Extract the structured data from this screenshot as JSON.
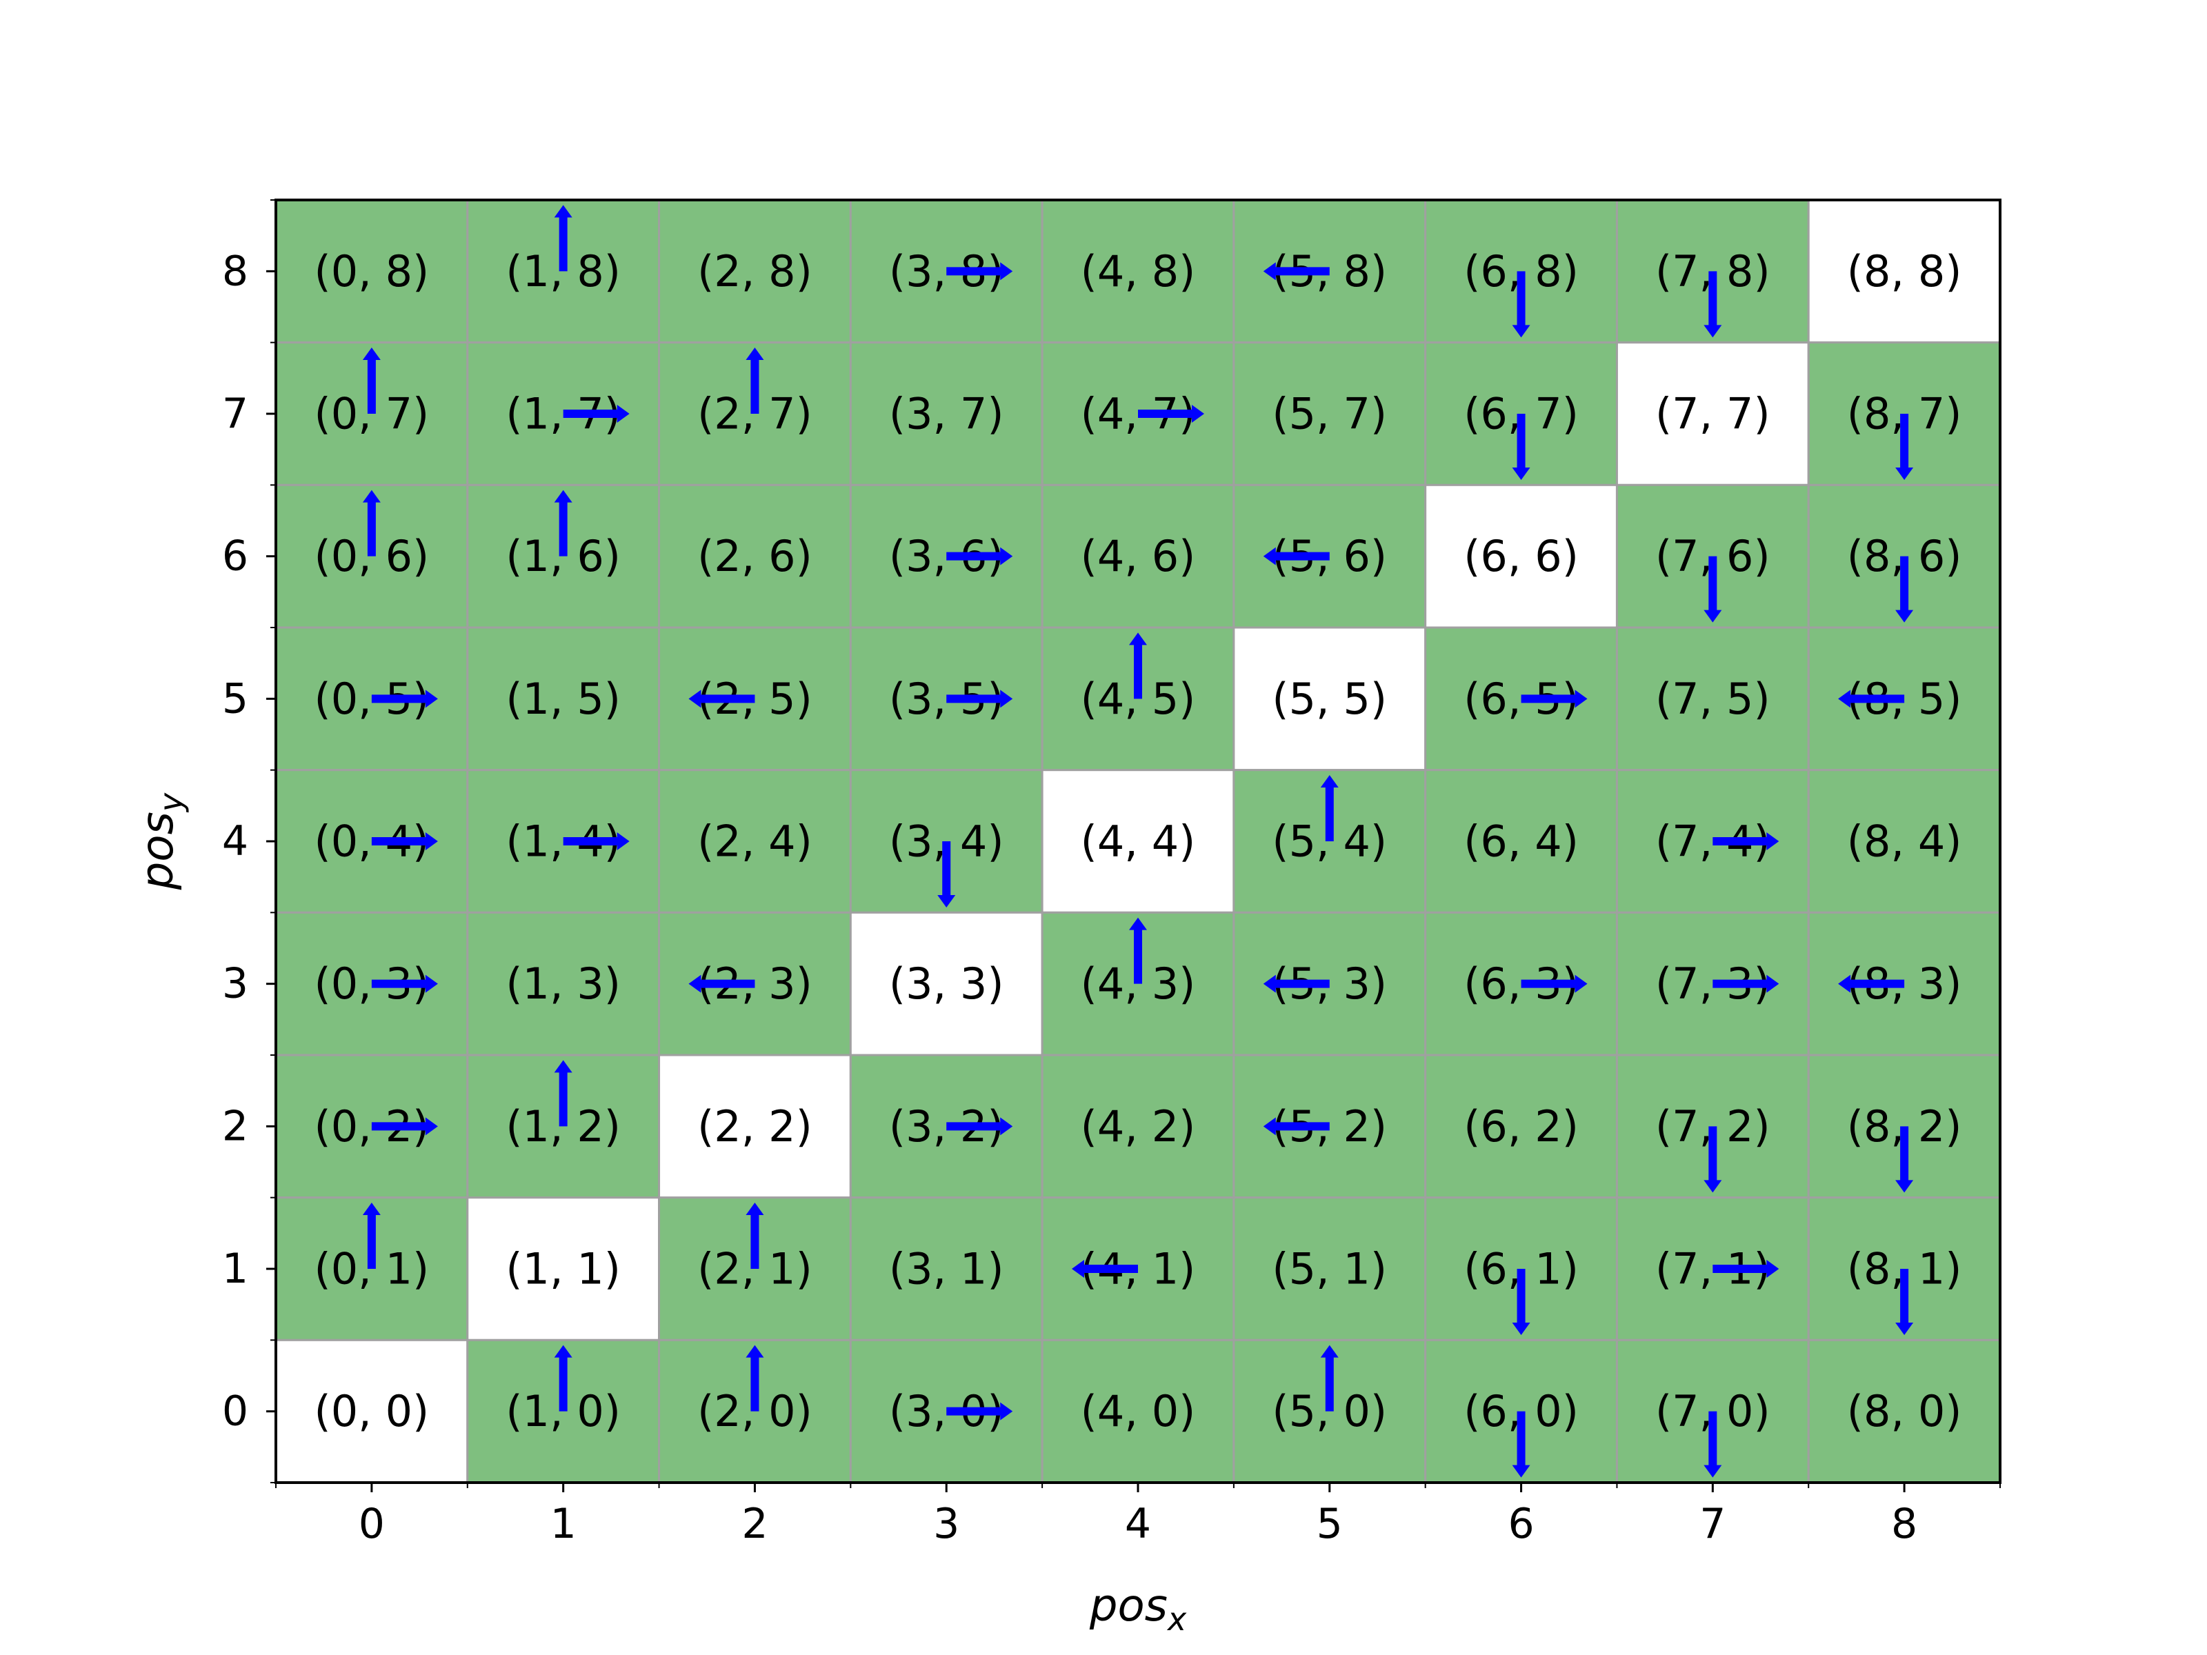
{
  "chart_data": {
    "type": "heatmap",
    "title": "",
    "xlabel": "pos",
    "xlabel_sub": "x",
    "ylabel": "pos",
    "ylabel_sub": "y",
    "xlim": [
      -0.5,
      8.5
    ],
    "ylim": [
      -0.5,
      8.5
    ],
    "x_ticks": [
      "0",
      "1",
      "2",
      "3",
      "4",
      "5",
      "6",
      "7",
      "8"
    ],
    "y_ticks": [
      "0",
      "1",
      "2",
      "3",
      "4",
      "5",
      "6",
      "7",
      "8"
    ],
    "grid": false,
    "colors": {
      "cell_fill": "#7fbf7f",
      "highlight_fill": "#ffffff",
      "cell_border": "#a0a0a0",
      "arrow": "#0000ff",
      "text": "#000000"
    },
    "highlighted_cells": [
      [
        0,
        0
      ],
      [
        1,
        1
      ],
      [
        2,
        2
      ],
      [
        3,
        3
      ],
      [
        4,
        4
      ],
      [
        5,
        5
      ],
      [
        6,
        6
      ],
      [
        7,
        7
      ],
      [
        8,
        8
      ]
    ],
    "cells": [
      {
        "x": 0,
        "y": 8,
        "label": "(0, 8)",
        "action": ""
      },
      {
        "x": 1,
        "y": 8,
        "label": "(1, 8)",
        "action": "up"
      },
      {
        "x": 2,
        "y": 8,
        "label": "(2, 8)",
        "action": ""
      },
      {
        "x": 3,
        "y": 8,
        "label": "(3, 8)",
        "action": "right"
      },
      {
        "x": 4,
        "y": 8,
        "label": "(4, 8)",
        "action": ""
      },
      {
        "x": 5,
        "y": 8,
        "label": "(5, 8)",
        "action": "left"
      },
      {
        "x": 6,
        "y": 8,
        "label": "(6, 8)",
        "action": "down"
      },
      {
        "x": 7,
        "y": 8,
        "label": "(7, 8)",
        "action": "down"
      },
      {
        "x": 8,
        "y": 8,
        "label": "(8, 8)",
        "action": ""
      },
      {
        "x": 0,
        "y": 7,
        "label": "(0, 7)",
        "action": "up"
      },
      {
        "x": 1,
        "y": 7,
        "label": "(1, 7)",
        "action": "right"
      },
      {
        "x": 2,
        "y": 7,
        "label": "(2, 7)",
        "action": "up"
      },
      {
        "x": 3,
        "y": 7,
        "label": "(3, 7)",
        "action": ""
      },
      {
        "x": 4,
        "y": 7,
        "label": "(4, 7)",
        "action": "right"
      },
      {
        "x": 5,
        "y": 7,
        "label": "(5, 7)",
        "action": ""
      },
      {
        "x": 6,
        "y": 7,
        "label": "(6, 7)",
        "action": "down"
      },
      {
        "x": 7,
        "y": 7,
        "label": "(7, 7)",
        "action": ""
      },
      {
        "x": 8,
        "y": 7,
        "label": "(8, 7)",
        "action": "down"
      },
      {
        "x": 0,
        "y": 6,
        "label": "(0, 6)",
        "action": "up"
      },
      {
        "x": 1,
        "y": 6,
        "label": "(1, 6)",
        "action": "up"
      },
      {
        "x": 2,
        "y": 6,
        "label": "(2, 6)",
        "action": ""
      },
      {
        "x": 3,
        "y": 6,
        "label": "(3, 6)",
        "action": "right"
      },
      {
        "x": 4,
        "y": 6,
        "label": "(4, 6)",
        "action": ""
      },
      {
        "x": 5,
        "y": 6,
        "label": "(5, 6)",
        "action": "left"
      },
      {
        "x": 6,
        "y": 6,
        "label": "(6, 6)",
        "action": ""
      },
      {
        "x": 7,
        "y": 6,
        "label": "(7, 6)",
        "action": "down"
      },
      {
        "x": 8,
        "y": 6,
        "label": "(8, 6)",
        "action": "down"
      },
      {
        "x": 0,
        "y": 5,
        "label": "(0, 5)",
        "action": "right"
      },
      {
        "x": 1,
        "y": 5,
        "label": "(1, 5)",
        "action": ""
      },
      {
        "x": 2,
        "y": 5,
        "label": "(2, 5)",
        "action": "left"
      },
      {
        "x": 3,
        "y": 5,
        "label": "(3, 5)",
        "action": "right"
      },
      {
        "x": 4,
        "y": 5,
        "label": "(4, 5)",
        "action": "up"
      },
      {
        "x": 5,
        "y": 5,
        "label": "(5, 5)",
        "action": ""
      },
      {
        "x": 6,
        "y": 5,
        "label": "(6, 5)",
        "action": "right"
      },
      {
        "x": 7,
        "y": 5,
        "label": "(7, 5)",
        "action": ""
      },
      {
        "x": 8,
        "y": 5,
        "label": "(8, 5)",
        "action": "left"
      },
      {
        "x": 0,
        "y": 4,
        "label": "(0, 4)",
        "action": "right"
      },
      {
        "x": 1,
        "y": 4,
        "label": "(1, 4)",
        "action": "right"
      },
      {
        "x": 2,
        "y": 4,
        "label": "(2, 4)",
        "action": ""
      },
      {
        "x": 3,
        "y": 4,
        "label": "(3, 4)",
        "action": "down"
      },
      {
        "x": 4,
        "y": 4,
        "label": "(4, 4)",
        "action": ""
      },
      {
        "x": 5,
        "y": 4,
        "label": "(5, 4)",
        "action": "up"
      },
      {
        "x": 6,
        "y": 4,
        "label": "(6, 4)",
        "action": ""
      },
      {
        "x": 7,
        "y": 4,
        "label": "(7, 4)",
        "action": "right"
      },
      {
        "x": 8,
        "y": 4,
        "label": "(8, 4)",
        "action": ""
      },
      {
        "x": 0,
        "y": 3,
        "label": "(0, 3)",
        "action": "right"
      },
      {
        "x": 1,
        "y": 3,
        "label": "(1, 3)",
        "action": ""
      },
      {
        "x": 2,
        "y": 3,
        "label": "(2, 3)",
        "action": "left"
      },
      {
        "x": 3,
        "y": 3,
        "label": "(3, 3)",
        "action": ""
      },
      {
        "x": 4,
        "y": 3,
        "label": "(4, 3)",
        "action": "up"
      },
      {
        "x": 5,
        "y": 3,
        "label": "(5, 3)",
        "action": "left"
      },
      {
        "x": 6,
        "y": 3,
        "label": "(6, 3)",
        "action": "right"
      },
      {
        "x": 7,
        "y": 3,
        "label": "(7, 3)",
        "action": "right"
      },
      {
        "x": 8,
        "y": 3,
        "label": "(8, 3)",
        "action": "left"
      },
      {
        "x": 0,
        "y": 2,
        "label": "(0, 2)",
        "action": "right"
      },
      {
        "x": 1,
        "y": 2,
        "label": "(1, 2)",
        "action": "up"
      },
      {
        "x": 2,
        "y": 2,
        "label": "(2, 2)",
        "action": ""
      },
      {
        "x": 3,
        "y": 2,
        "label": "(3, 2)",
        "action": "right"
      },
      {
        "x": 4,
        "y": 2,
        "label": "(4, 2)",
        "action": ""
      },
      {
        "x": 5,
        "y": 2,
        "label": "(5, 2)",
        "action": "left"
      },
      {
        "x": 6,
        "y": 2,
        "label": "(6, 2)",
        "action": ""
      },
      {
        "x": 7,
        "y": 2,
        "label": "(7, 2)",
        "action": "down"
      },
      {
        "x": 8,
        "y": 2,
        "label": "(8, 2)",
        "action": "down"
      },
      {
        "x": 0,
        "y": 1,
        "label": "(0, 1)",
        "action": "up"
      },
      {
        "x": 1,
        "y": 1,
        "label": "(1, 1)",
        "action": ""
      },
      {
        "x": 2,
        "y": 1,
        "label": "(2, 1)",
        "action": "up"
      },
      {
        "x": 3,
        "y": 1,
        "label": "(3, 1)",
        "action": ""
      },
      {
        "x": 4,
        "y": 1,
        "label": "(4, 1)",
        "action": "left"
      },
      {
        "x": 5,
        "y": 1,
        "label": "(5, 1)",
        "action": ""
      },
      {
        "x": 6,
        "y": 1,
        "label": "(6, 1)",
        "action": "down"
      },
      {
        "x": 7,
        "y": 1,
        "label": "(7, 1)",
        "action": "right"
      },
      {
        "x": 8,
        "y": 1,
        "label": "(8, 1)",
        "action": "down"
      },
      {
        "x": 0,
        "y": 0,
        "label": "(0, 0)",
        "action": ""
      },
      {
        "x": 1,
        "y": 0,
        "label": "(1, 0)",
        "action": "up"
      },
      {
        "x": 2,
        "y": 0,
        "label": "(2, 0)",
        "action": "up"
      },
      {
        "x": 3,
        "y": 0,
        "label": "(3, 0)",
        "action": "right"
      },
      {
        "x": 4,
        "y": 0,
        "label": "(4, 0)",
        "action": ""
      },
      {
        "x": 5,
        "y": 0,
        "label": "(5, 0)",
        "action": "up"
      },
      {
        "x": 6,
        "y": 0,
        "label": "(6, 0)",
        "action": "down"
      },
      {
        "x": 7,
        "y": 0,
        "label": "(7, 0)",
        "action": "down"
      },
      {
        "x": 8,
        "y": 0,
        "label": "(8, 0)",
        "action": ""
      }
    ]
  }
}
